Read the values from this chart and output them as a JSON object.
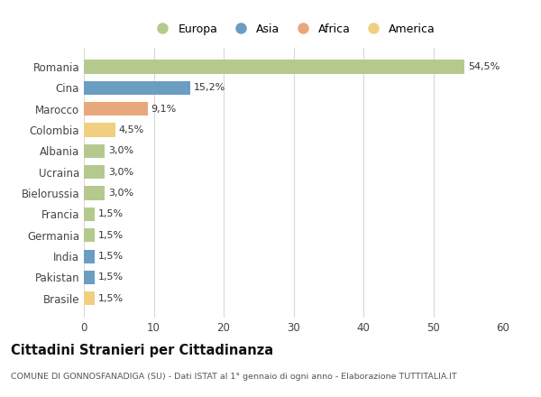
{
  "categories": [
    "Romania",
    "Cina",
    "Marocco",
    "Colombia",
    "Albania",
    "Ucraina",
    "Bielorussia",
    "Francia",
    "Germania",
    "India",
    "Pakistan",
    "Brasile"
  ],
  "values": [
    54.5,
    15.2,
    9.1,
    4.5,
    3.0,
    3.0,
    3.0,
    1.5,
    1.5,
    1.5,
    1.5,
    1.5
  ],
  "labels": [
    "54,5%",
    "15,2%",
    "9,1%",
    "4,5%",
    "3,0%",
    "3,0%",
    "3,0%",
    "1,5%",
    "1,5%",
    "1,5%",
    "1,5%",
    "1,5%"
  ],
  "continents": [
    "Europa",
    "Asia",
    "Africa",
    "America",
    "Europa",
    "Europa",
    "Europa",
    "Europa",
    "Europa",
    "Asia",
    "Asia",
    "America"
  ],
  "colors": {
    "Europa": "#b5c98e",
    "Asia": "#6b9dc2",
    "Africa": "#e8a87c",
    "America": "#f0d080"
  },
  "xlim": [
    0,
    60
  ],
  "xticks": [
    0,
    10,
    20,
    30,
    40,
    50,
    60
  ],
  "title": "Cittadini Stranieri per Cittadinanza",
  "subtitle": "COMUNE DI GONNOSFANADIGA (SU) - Dati ISTAT al 1° gennaio di ogni anno - Elaborazione TUTTITALIA.IT",
  "background_color": "#ffffff",
  "grid_color": "#d8d8d8",
  "bar_height": 0.65,
  "legend_order": [
    "Europa",
    "Asia",
    "Africa",
    "America"
  ]
}
